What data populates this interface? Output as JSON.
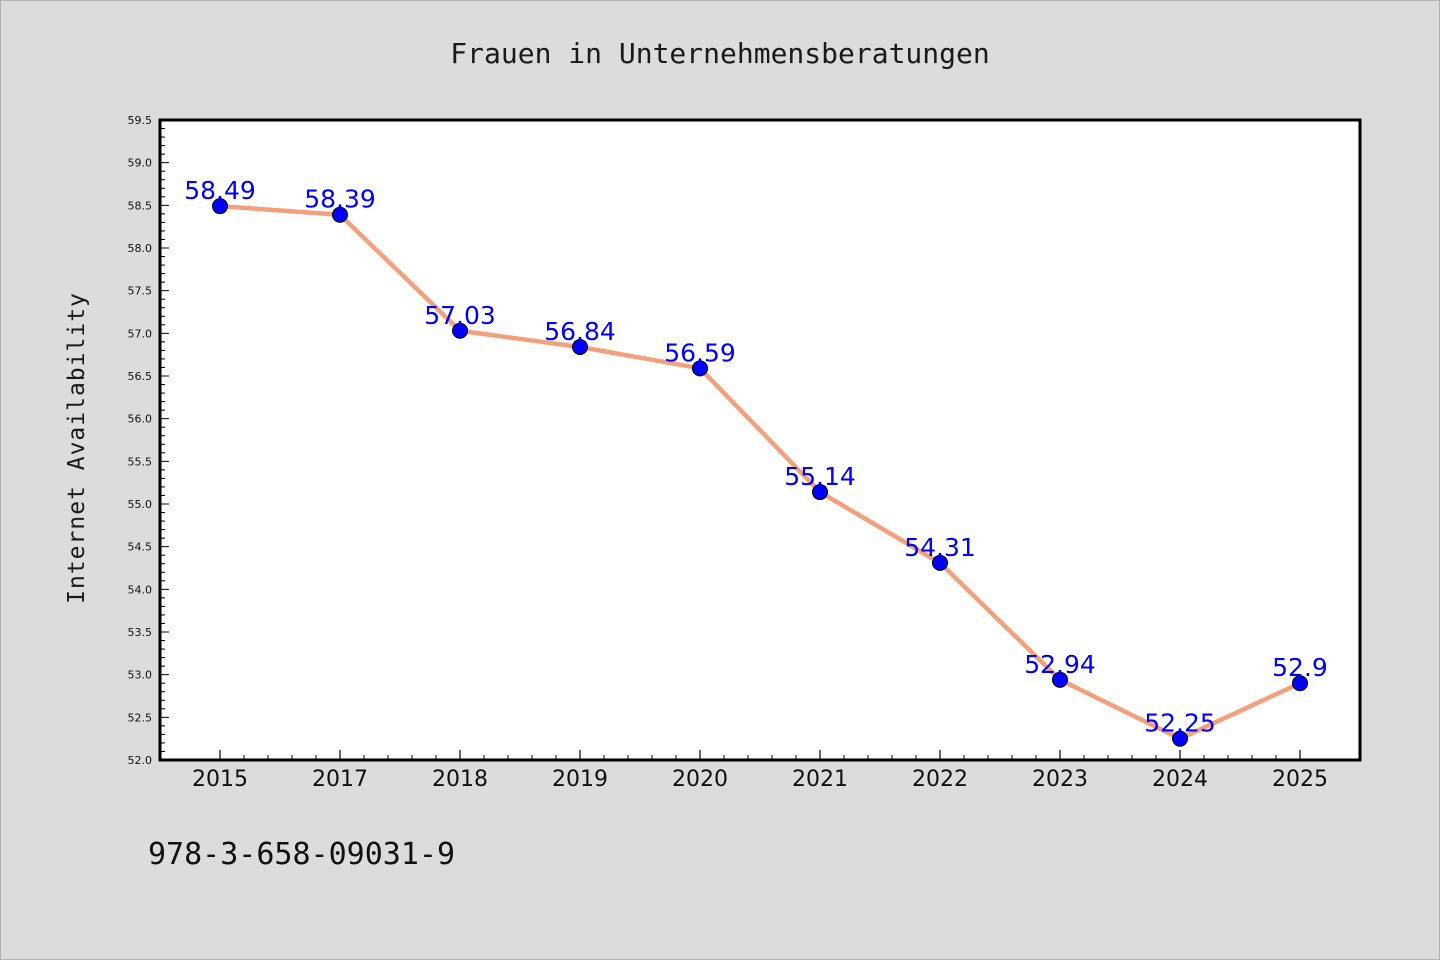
{
  "page": {
    "footer_code": "978-3-658-09031-9"
  },
  "colors": {
    "background": "#dcdcdc",
    "plot_background": "#ffffff",
    "line": "#f4a07c",
    "marker": "#0000ff",
    "label": "#0000ff"
  },
  "chart_data": {
    "type": "line",
    "title": "Frauen in Unternehmensberatungen",
    "xlabel": "",
    "ylabel": "Internet Availability",
    "categories": [
      "2015",
      "2017",
      "2018",
      "2019",
      "2020",
      "2021",
      "2022",
      "2023",
      "2024",
      "2025"
    ],
    "series": [
      {
        "values": [
          58.49,
          58.39,
          57.03,
          56.84,
          56.59,
          55.14,
          54.31,
          52.94,
          52.25,
          52.9
        ],
        "labels": [
          "58.49",
          "58.39",
          "57.03",
          "56.84",
          "56.59",
          "55.14",
          "54.31",
          "52.94",
          "52.25",
          "52.9"
        ]
      }
    ],
    "ylim": [
      52.0,
      59.5
    ],
    "yticks": [
      "52.0",
      "52.5",
      "53.0",
      "53.5",
      "54.0",
      "54.5",
      "55.0",
      "55.5",
      "56.0",
      "56.5",
      "57.0",
      "57.5",
      "58.0",
      "58.5",
      "59.0",
      "59.5"
    ],
    "grid": false,
    "legend": "none"
  }
}
